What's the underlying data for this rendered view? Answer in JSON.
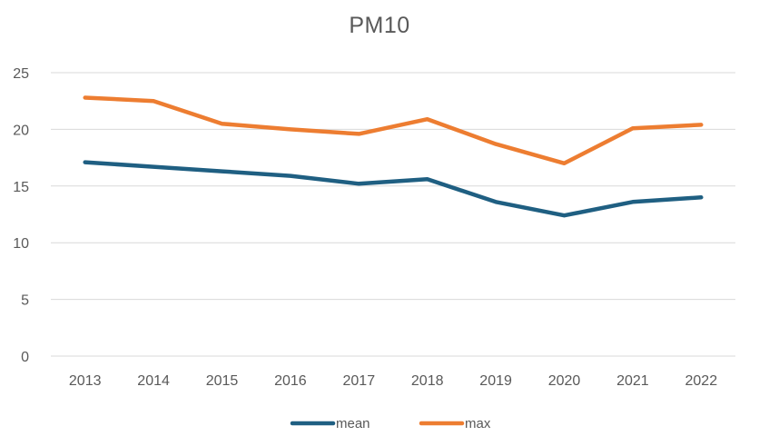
{
  "chart_data": {
    "type": "line",
    "title": "PM10",
    "xlabel": "",
    "ylabel": "",
    "categories": [
      "2013",
      "2014",
      "2015",
      "2016",
      "2017",
      "2018",
      "2019",
      "2020",
      "2021",
      "2022"
    ],
    "ylim": [
      0,
      25
    ],
    "yticks": [
      0,
      5,
      10,
      15,
      20,
      25
    ],
    "grid": true,
    "legend_position": "bottom",
    "series": [
      {
        "name": "mean",
        "color": "#1f5f82",
        "values": [
          17.1,
          16.7,
          16.3,
          15.9,
          15.2,
          15.6,
          13.6,
          12.4,
          13.6,
          14.0
        ]
      },
      {
        "name": "max",
        "color": "#ed7d31",
        "values": [
          22.8,
          22.5,
          20.5,
          20.0,
          19.6,
          20.9,
          18.7,
          17.0,
          20.1,
          20.4
        ]
      }
    ]
  }
}
